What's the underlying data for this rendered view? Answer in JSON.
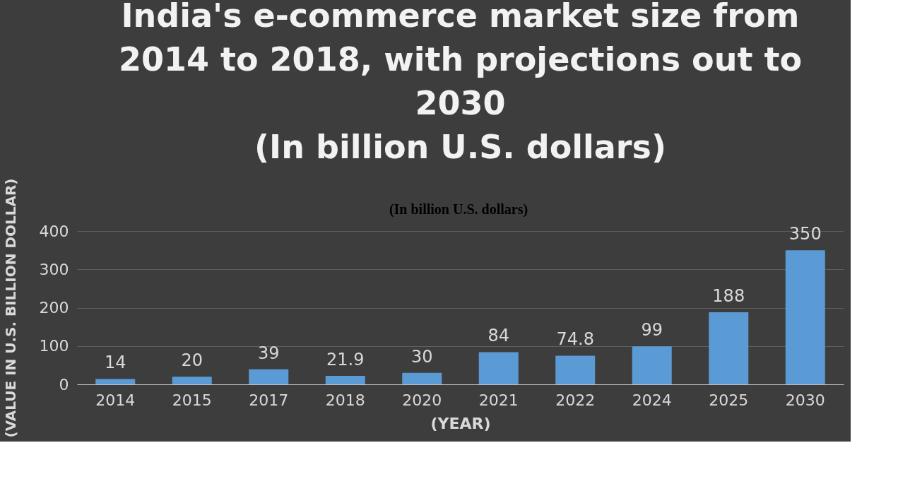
{
  "chart_data": {
    "type": "bar",
    "title": [
      "India's e-commerce market size from",
      "2014 to 2018, with projections out to",
      "2030",
      "(In billion U.S. dollars)"
    ],
    "annotations": [
      "(In billion U.S. dollars)"
    ],
    "xlabel": "(YEAR)",
    "ylabel": "(VALUE IN U.S. BILLION DOLLAR)",
    "categories": [
      "2014",
      "2015",
      "2017",
      "2018",
      "2020",
      "2021",
      "2022",
      "2024",
      "2025",
      "2030"
    ],
    "values": [
      14,
      20,
      39,
      21.9,
      30,
      84,
      74.8,
      99,
      188,
      350
    ],
    "color": "#5b9bd5",
    "ylim": [
      0,
      400
    ],
    "yticks": [
      0,
      100,
      200,
      300,
      400
    ],
    "grid": "y",
    "data_labels": true
  }
}
